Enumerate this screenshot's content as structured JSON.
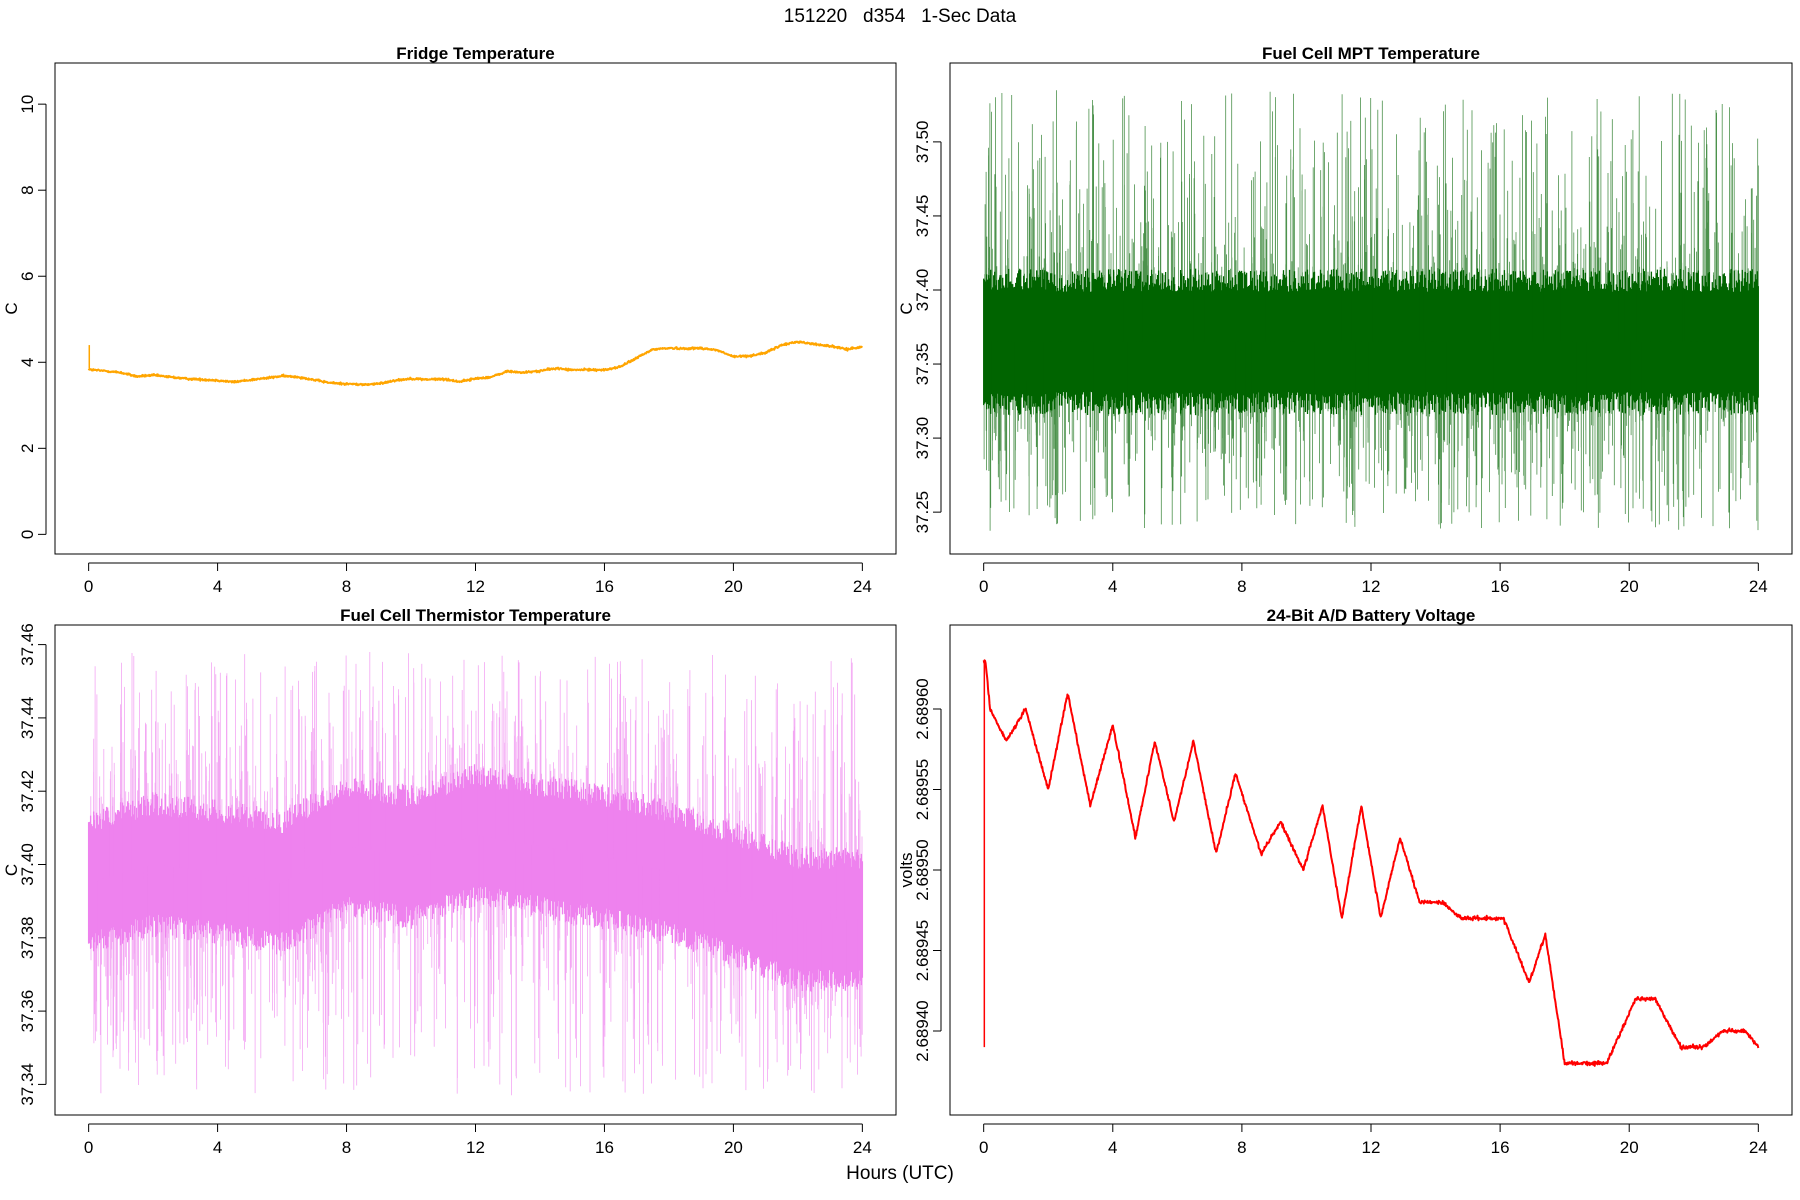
{
  "figure": {
    "title": "151220   d354   1-Sec Data",
    "xlabel": "Hours (UTC)"
  },
  "chart_data": [
    {
      "id": "fridge",
      "type": "line",
      "title": "Fridge Temperature",
      "xlabel": "Hours (UTC)",
      "ylabel": "C",
      "color": "#ffa500",
      "xlim": [
        0,
        24
      ],
      "ylim": [
        0,
        10.5
      ],
      "xticks": [
        0,
        4,
        8,
        12,
        16,
        20,
        24
      ],
      "yticks": [
        0,
        2,
        4,
        6,
        8,
        10
      ],
      "ytick_labels": [
        "0",
        "2",
        "4",
        "6",
        "8",
        "10"
      ],
      "noise": 0.012,
      "spike": {
        "x": 0.02,
        "y_from": 3.85,
        "y_to": 4.4
      },
      "x": [
        0,
        0.5,
        1,
        1.5,
        2,
        2.5,
        3,
        3.5,
        4,
        4.5,
        5,
        5.5,
        6,
        6.5,
        7,
        7.5,
        8,
        8.5,
        9,
        9.5,
        10,
        10.5,
        11,
        11.5,
        12,
        12.5,
        13,
        13.5,
        14,
        14.5,
        15,
        15.5,
        16,
        16.5,
        17,
        17.5,
        18,
        18.5,
        19,
        19.5,
        20,
        20.5,
        21,
        21.5,
        22,
        22.5,
        23,
        23.5,
        24
      ],
      "y": [
        3.83,
        3.8,
        3.76,
        3.67,
        3.7,
        3.66,
        3.62,
        3.6,
        3.58,
        3.54,
        3.59,
        3.63,
        3.68,
        3.66,
        3.59,
        3.52,
        3.5,
        3.48,
        3.5,
        3.58,
        3.62,
        3.6,
        3.61,
        3.55,
        3.62,
        3.66,
        3.79,
        3.76,
        3.8,
        3.86,
        3.82,
        3.83,
        3.82,
        3.9,
        4.1,
        4.3,
        4.33,
        4.32,
        4.33,
        4.28,
        4.13,
        4.15,
        4.22,
        4.4,
        4.48,
        4.42,
        4.38,
        4.3,
        4.36
      ]
    },
    {
      "id": "fuelcell-mpt",
      "type": "line",
      "title": "Fuel Cell MPT Temperature",
      "xlabel": "Hours (UTC)",
      "ylabel": "C",
      "color": "#006400",
      "xlim": [
        0,
        24
      ],
      "ylim": [
        37.235,
        37.54
      ],
      "xticks": [
        0,
        4,
        8,
        12,
        16,
        20,
        24
      ],
      "yticks": [
        37.25,
        37.3,
        37.35,
        37.4,
        37.45,
        37.5
      ],
      "ytick_labels": [
        "37.25",
        "37.30",
        "37.35",
        "37.40",
        "37.45",
        "37.50"
      ],
      "band": {
        "center": 37.365,
        "dense_half": 0.045,
        "spike_max": 37.535,
        "spike_min": 37.237
      },
      "x": [
        0,
        24
      ],
      "y": [
        37.365,
        37.365
      ]
    },
    {
      "id": "fuelcell-thermistor",
      "type": "line",
      "title": "Fuel Cell Thermistor Temperature",
      "xlabel": "Hours (UTC)",
      "ylabel": "C",
      "color": "#ee82ee",
      "xlim": [
        0,
        24
      ],
      "ylim": [
        37.337,
        37.46
      ],
      "xticks": [
        0,
        4,
        8,
        12,
        16,
        20,
        24
      ],
      "yticks": [
        37.34,
        37.36,
        37.38,
        37.4,
        37.42,
        37.44,
        37.46
      ],
      "ytick_labels": [
        "37.34",
        "37.36",
        "37.38",
        "37.40",
        "37.42",
        "37.44",
        "37.46"
      ],
      "band": {
        "center": 37.398,
        "dense_half": 0.018,
        "spike_max": 37.458,
        "spike_min": 37.337
      },
      "x": [
        0,
        2,
        4,
        6,
        8,
        10,
        12,
        14,
        16,
        18,
        20,
        22,
        24
      ],
      "y": [
        37.395,
        37.4,
        37.398,
        37.395,
        37.405,
        37.402,
        37.408,
        37.405,
        37.402,
        37.398,
        37.392,
        37.385,
        37.385
      ]
    },
    {
      "id": "battery-voltage",
      "type": "line",
      "title": "24-Bit A/D Battery Voltage",
      "xlabel": "Hours (UTC)",
      "ylabel": "volts",
      "color": "#ff0000",
      "xlim": [
        0,
        24
      ],
      "ylim": [
        2.68936,
        2.68964
      ],
      "xticks": [
        0,
        4,
        8,
        12,
        16,
        20,
        24
      ],
      "yticks": [
        2.6894,
        2.68945,
        2.6895,
        2.68955,
        2.6896
      ],
      "ytick_labels": [
        "2.68940",
        "2.68945",
        "2.68950",
        "2.68955",
        "2.68960"
      ],
      "noise": 6e-07,
      "spike": {
        "x": 0.02,
        "y_from": 2.68963,
        "y_to": 2.68939
      },
      "x": [
        0.0,
        0.05,
        0.2,
        0.7,
        1.3,
        2.0,
        2.6,
        3.3,
        4.0,
        4.7,
        5.3,
        5.9,
        6.5,
        7.2,
        7.8,
        8.6,
        9.2,
        9.9,
        10.5,
        11.1,
        11.7,
        12.3,
        12.9,
        13.5,
        14.2,
        14.8,
        15.5,
        16.1,
        16.9,
        17.4,
        18.0,
        18.7,
        19.3,
        20.2,
        20.8,
        21.6,
        22.3,
        22.9,
        23.6,
        24.0
      ],
      "y": [
        2.68963,
        2.68963,
        2.6896,
        2.68958,
        2.6896,
        2.68955,
        2.68961,
        2.68954,
        2.68959,
        2.68952,
        2.68958,
        2.68953,
        2.68958,
        2.68951,
        2.68956,
        2.68951,
        2.68953,
        2.6895,
        2.68954,
        2.68947,
        2.68954,
        2.68947,
        2.68952,
        2.68948,
        2.68948,
        2.68947,
        2.68947,
        2.68947,
        2.68943,
        2.68946,
        2.68938,
        2.68938,
        2.68938,
        2.68942,
        2.68942,
        2.68939,
        2.68939,
        2.6894,
        2.6894,
        2.68939
      ]
    }
  ]
}
